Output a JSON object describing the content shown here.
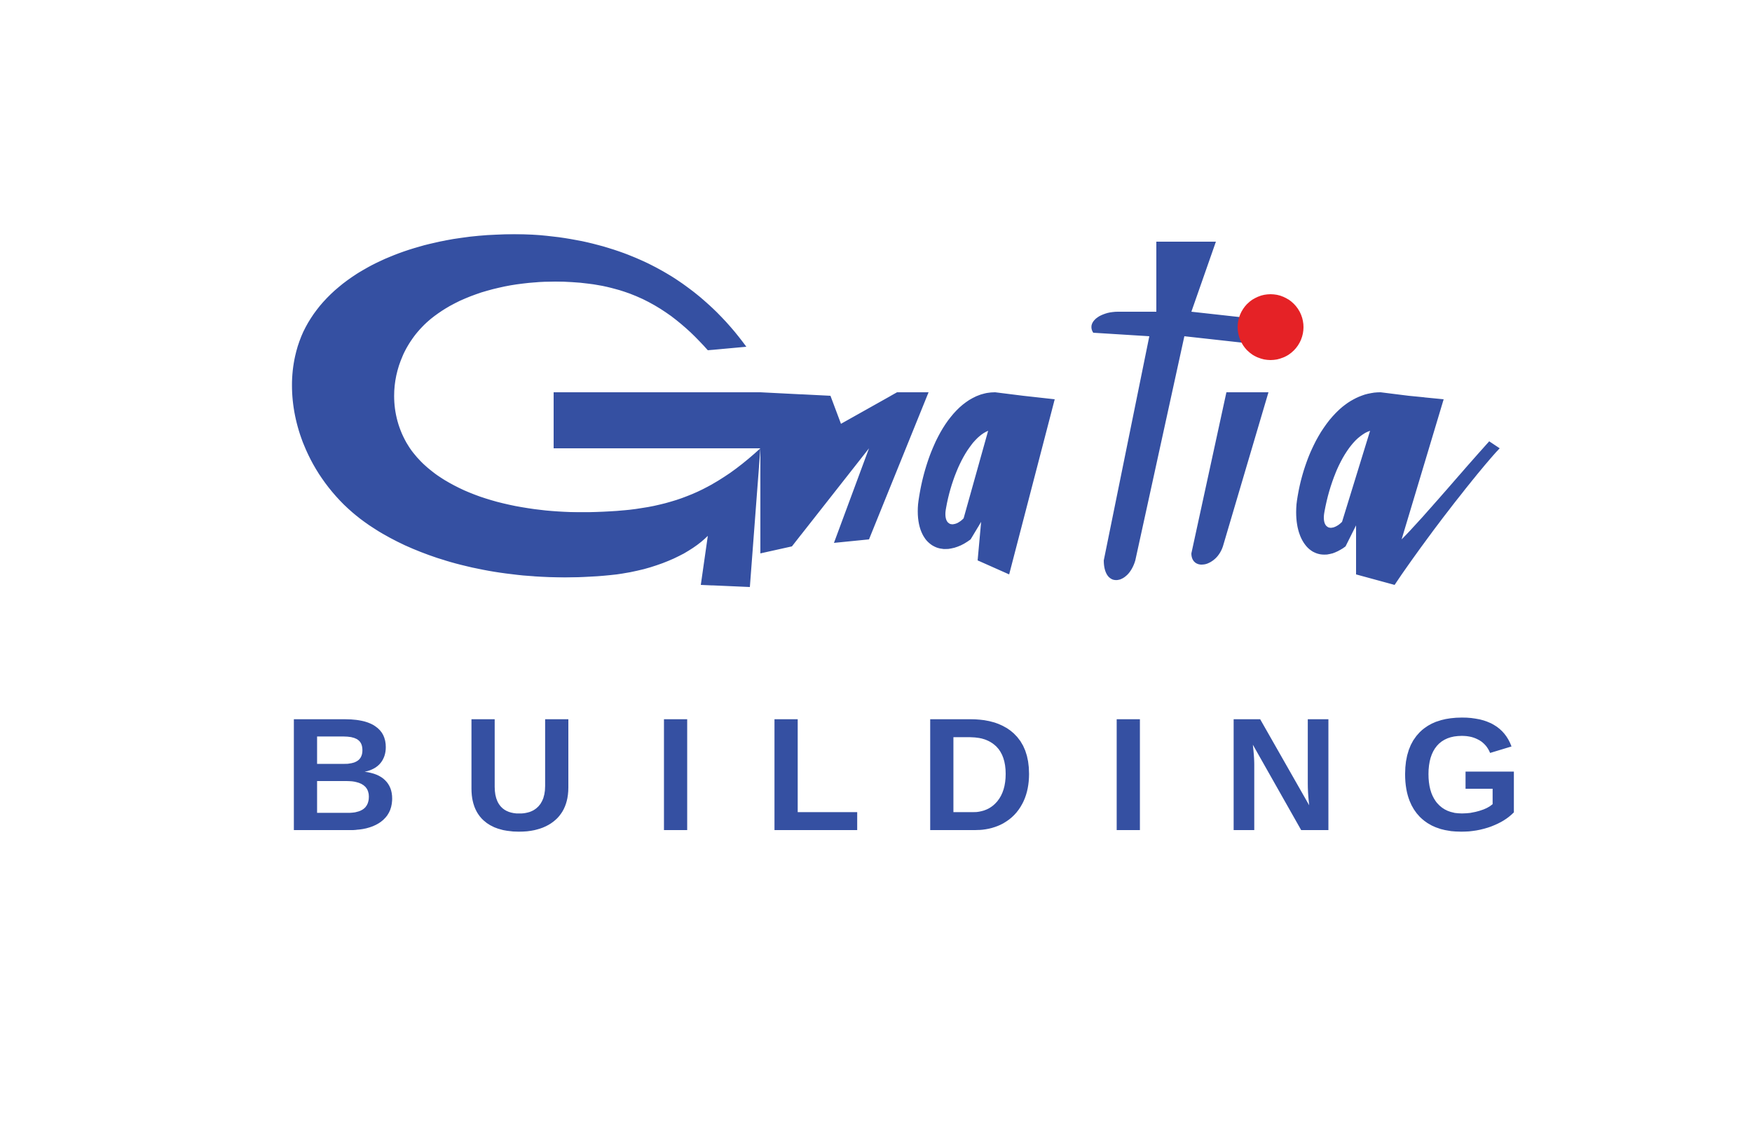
{
  "logo": {
    "name": "Gratia",
    "tagline": "BUILDING",
    "letters": [
      "B",
      "U",
      "I",
      "L",
      "D",
      "I",
      "N",
      "G"
    ],
    "colors": {
      "brand_blue": "#3550A2",
      "accent_red": "#E52226",
      "background": "#FFFFFF"
    }
  }
}
